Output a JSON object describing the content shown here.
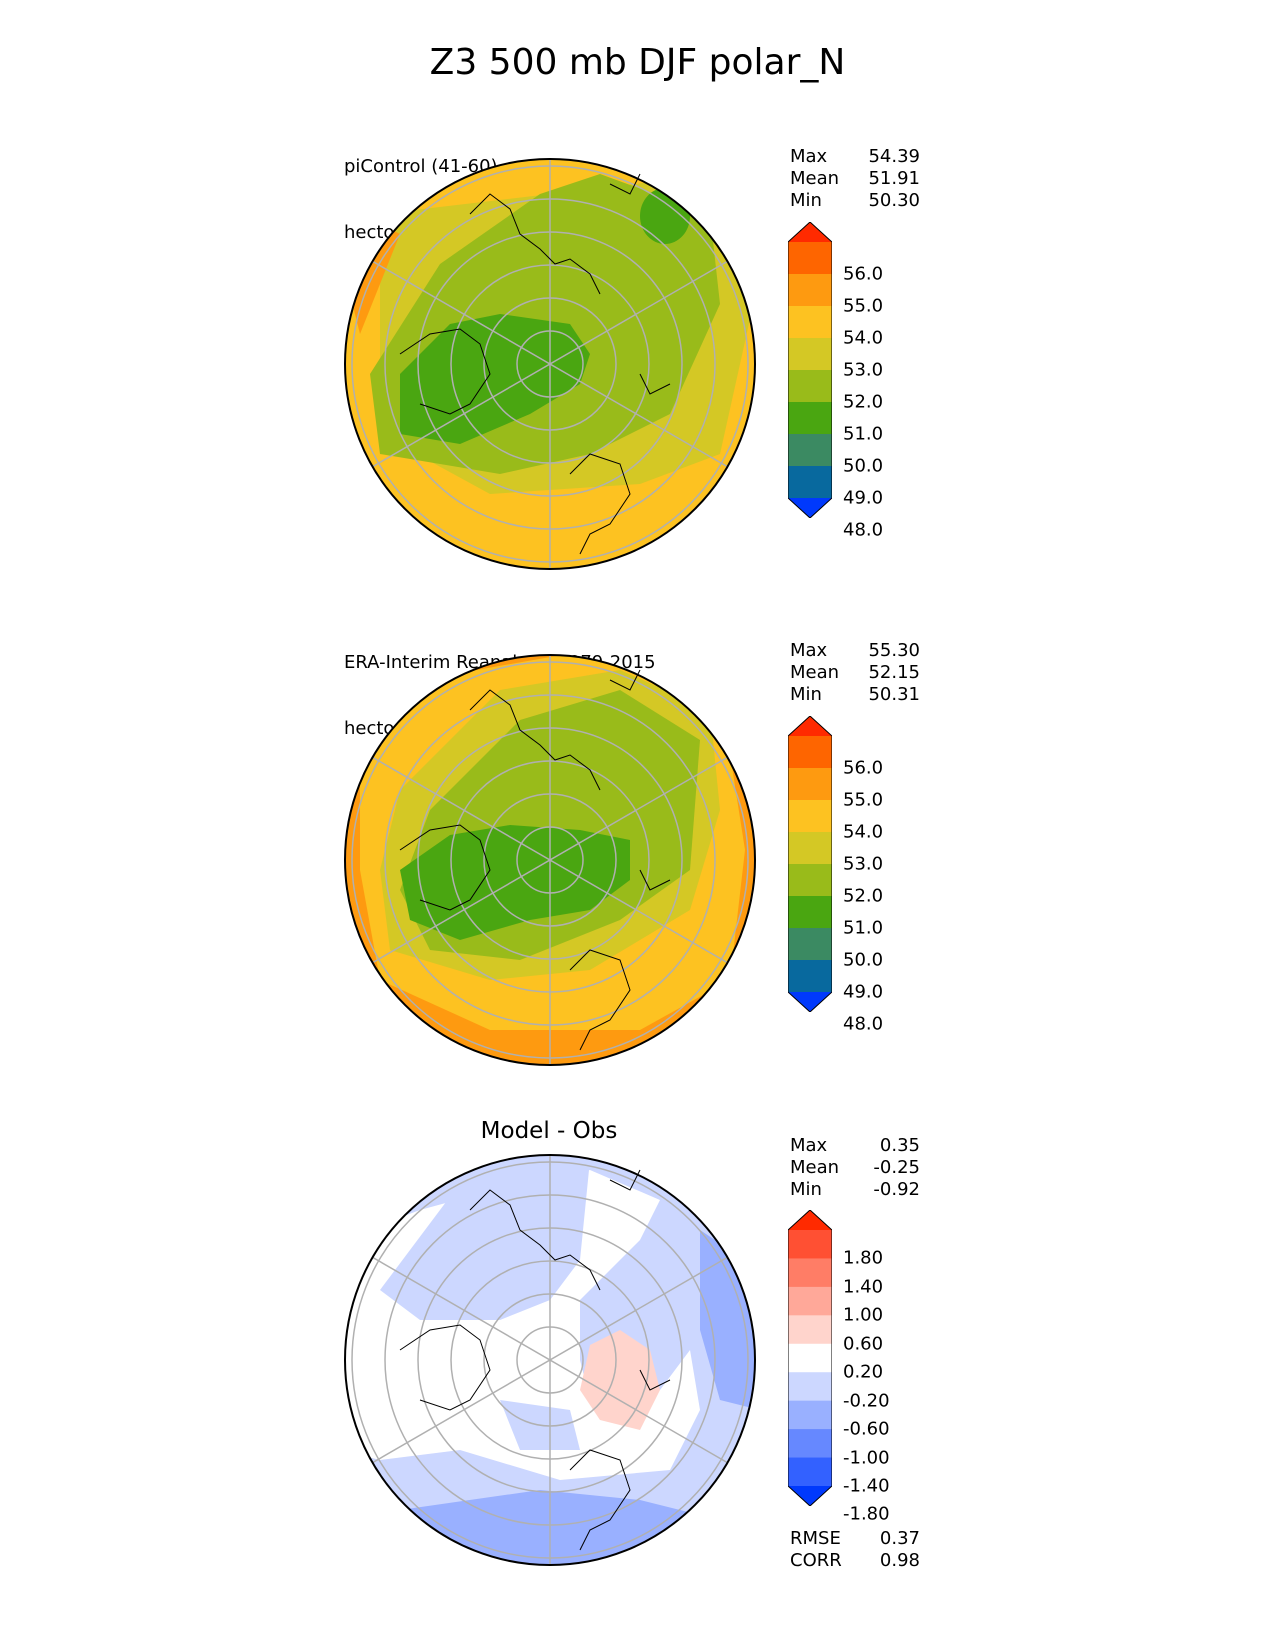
{
  "title": "Z3 500 mb DJF polar_N",
  "panels": [
    {
      "label_line1": "piControl (41-60)",
      "label_line2": "hectometer",
      "stats": {
        "max_label": "Max",
        "max": "54.39",
        "mean_label": "Mean",
        "mean": "51.91",
        "min_label": "Min",
        "min": "50.30"
      },
      "colorbar": {
        "ticks": [
          "56.0",
          "55.0",
          "54.0",
          "53.0",
          "52.0",
          "51.0",
          "50.0",
          "49.0",
          "48.0"
        ],
        "colors": [
          "#ff2a00",
          "#fe6500",
          "#fe9a10",
          "#fdc221",
          "#d4c825",
          "#99bb1a",
          "#4aa611",
          "#3b8a62",
          "#08699e",
          "#0039fc"
        ]
      },
      "map_fill_colors": {
        "outer": "#fdc221",
        "mid": "#d4c825",
        "inner": "#99bb1a",
        "core": "#4aa611"
      }
    },
    {
      "label_line1": "ERA-Interim Reanalysis 1979-2015",
      "label_line2": "hectometer",
      "stats": {
        "max_label": "Max",
        "max": "55.30",
        "mean_label": "Mean",
        "mean": "52.15",
        "min_label": "Min",
        "min": "50.31"
      },
      "colorbar": {
        "ticks": [
          "56.0",
          "55.0",
          "54.0",
          "53.0",
          "52.0",
          "51.0",
          "50.0",
          "49.0",
          "48.0"
        ],
        "colors": [
          "#ff2a00",
          "#fe6500",
          "#fe9a10",
          "#fdc221",
          "#d4c825",
          "#99bb1a",
          "#4aa611",
          "#3b8a62",
          "#08699e",
          "#0039fc"
        ]
      },
      "map_fill_colors": {
        "rim": "#fe9a10",
        "outer": "#fdc221",
        "mid": "#d4c825",
        "inner": "#99bb1a",
        "core": "#4aa611"
      }
    },
    {
      "title": "Model - Obs",
      "stats": {
        "max_label": "Max",
        "max": "0.35",
        "mean_label": "Mean",
        "mean": "-0.25",
        "min_label": "Min",
        "min": "-0.92"
      },
      "colorbar": {
        "ticks": [
          "1.80",
          "1.40",
          "1.00",
          "0.60",
          "0.20",
          "-0.20",
          "-0.60",
          "-1.00",
          "-1.40",
          "-1.80"
        ],
        "colors": [
          "#ff2a00",
          "#ff5033",
          "#ff7d66",
          "#ffa899",
          "#ffd4cc",
          "#ffffff",
          "#ccd7ff",
          "#99b0ff",
          "#6688ff",
          "#3361ff",
          "#0039fc"
        ]
      },
      "metrics": {
        "rmse_label": "RMSE",
        "rmse": "0.37",
        "corr_label": "CORR",
        "corr": "0.98"
      },
      "map_fill_colors": {
        "white": "#ffffff",
        "light_blue": "#ccd7ff",
        "blue": "#99b0ff",
        "pink": "#ffd4cc"
      }
    }
  ]
}
